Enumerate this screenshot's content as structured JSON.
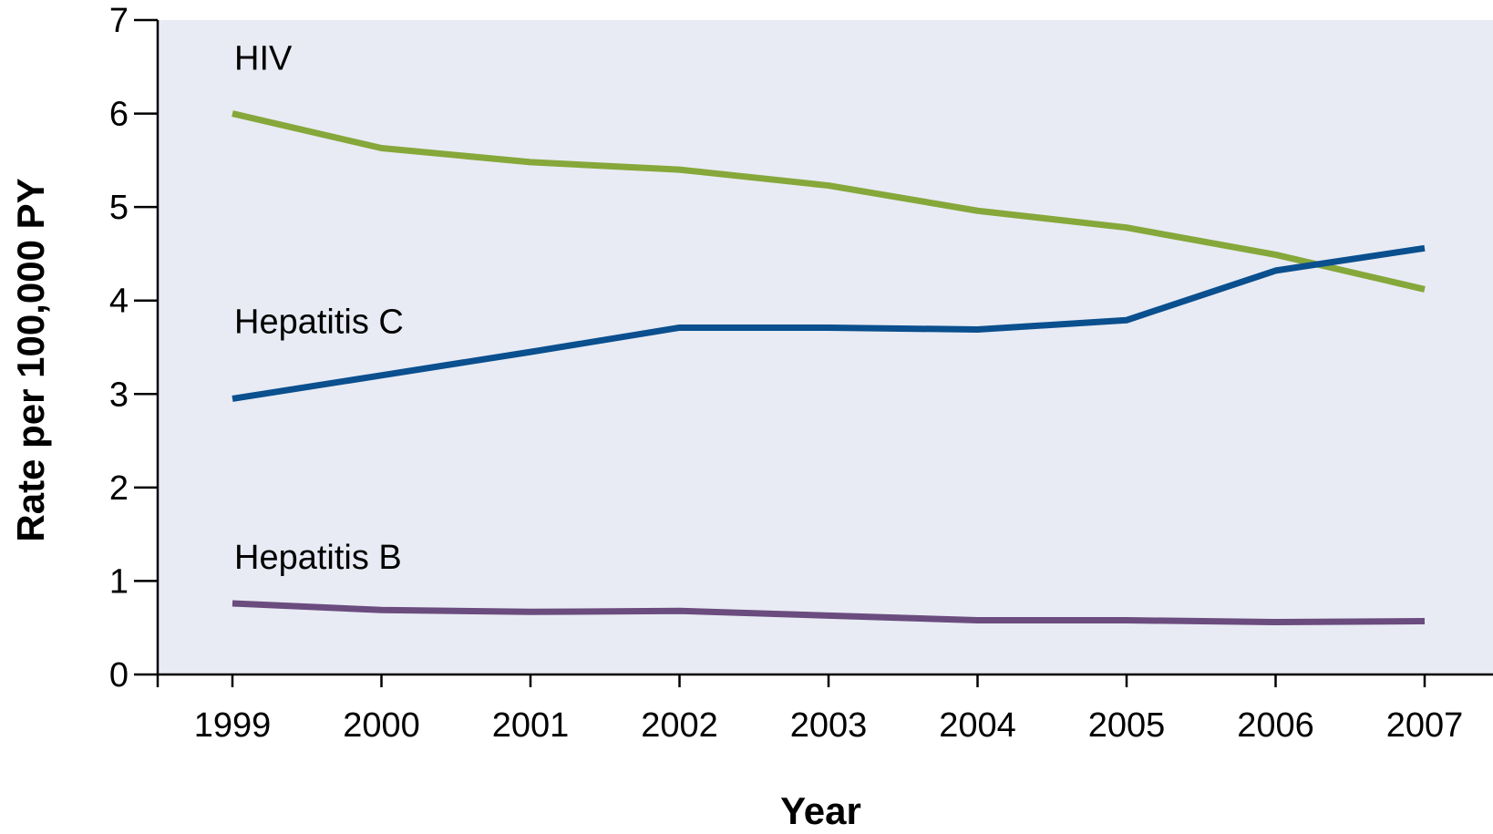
{
  "chart_data": {
    "type": "line",
    "title": "",
    "xlabel": "Year",
    "ylabel": "Rate per 100,000 PY",
    "categories": [
      "1999",
      "2000",
      "2001",
      "2002",
      "2003",
      "2004",
      "2005",
      "2006",
      "2007"
    ],
    "yticks": [
      "0",
      "1",
      "2",
      "3",
      "4",
      "5",
      "6",
      "7"
    ],
    "ylim": [
      0,
      7
    ],
    "grid": false,
    "legend": "none",
    "plot_background": "#e8ebf4",
    "series": [
      {
        "name": "HIV",
        "color": "#86a73a",
        "values": [
          6.0,
          5.63,
          5.48,
          5.4,
          5.23,
          4.96,
          4.78,
          4.49,
          4.12
        ]
      },
      {
        "name": "Hepatitis C",
        "color": "#0a4f8e",
        "values": [
          2.95,
          3.2,
          3.45,
          3.71,
          3.71,
          3.69,
          3.79,
          4.32,
          4.56
        ]
      },
      {
        "name": "Hepatitis B",
        "color": "#6b4c7e",
        "values": [
          0.76,
          0.69,
          0.67,
          0.68,
          0.63,
          0.58,
          0.58,
          0.56,
          0.57
        ]
      }
    ]
  }
}
